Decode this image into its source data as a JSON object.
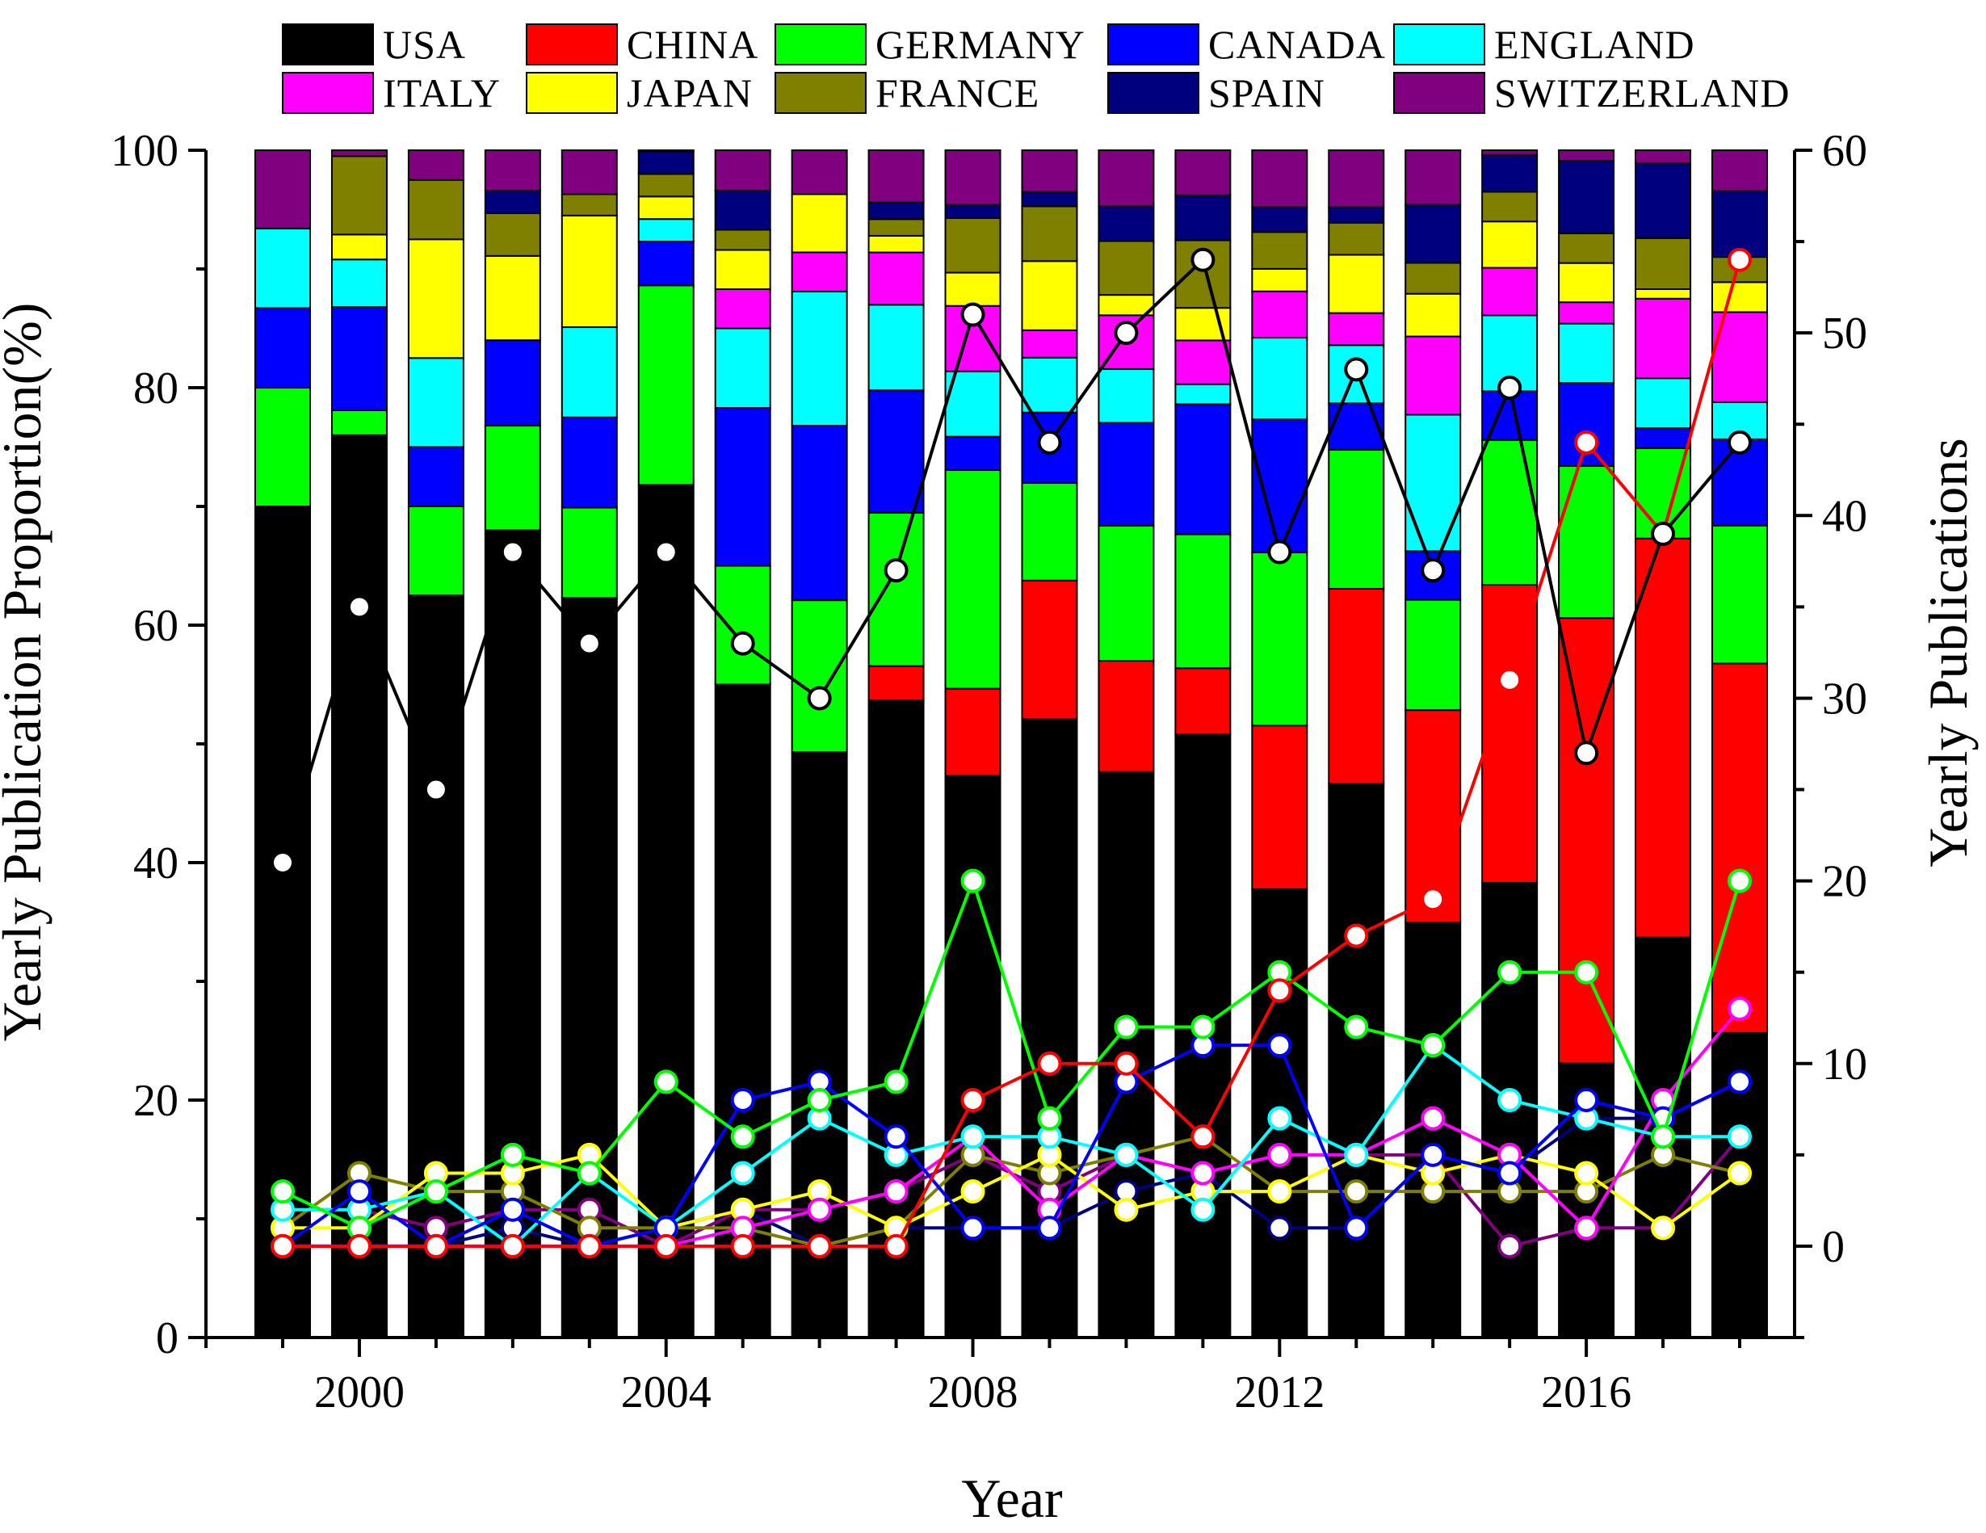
{
  "chart_data": {
    "type": "stacked-bar-with-lines",
    "xlabel": "Year",
    "ylabel_left": "Yearly Publication Proportion(%)",
    "ylabel_right": "Yearly Publications",
    "ylim_left": [
      0,
      100
    ],
    "ylim_right": [
      -5,
      60
    ],
    "left_ticks": [
      0,
      20,
      40,
      60,
      80,
      100
    ],
    "right_ticks": [
      0,
      10,
      20,
      30,
      40,
      50,
      60
    ],
    "x_ticks": [
      2000,
      2004,
      2008,
      2012,
      2016
    ],
    "years": [
      1999,
      2000,
      2001,
      2002,
      2003,
      2004,
      2005,
      2006,
      2007,
      2008,
      2009,
      2010,
      2011,
      2012,
      2013,
      2014,
      2015,
      2016,
      2017,
      2018
    ],
    "legend": {
      "placement": "top",
      "columns": 5
    },
    "series": [
      {
        "name": "USA",
        "color": "#000000",
        "proportions": [
          70,
          76,
          62.5,
          68,
          62.3,
          71.9,
          55,
          49.3,
          53.6,
          47.3,
          51.9,
          47.3,
          48.2,
          37.8,
          46.6,
          35,
          38.3,
          23.1,
          33.7,
          25.4
        ],
        "counts": [
          21,
          35,
          25,
          38,
          33,
          38,
          33,
          30,
          37,
          51,
          44,
          50,
          54,
          38,
          48,
          37,
          47,
          27,
          39,
          44
        ]
      },
      {
        "name": "CHINA",
        "color": "#ff0000",
        "proportions": [
          0,
          0,
          0,
          0,
          0,
          0,
          0,
          0,
          2.9,
          7.3,
          11.6,
          9.3,
          5.3,
          13.8,
          16.4,
          17.9,
          25.1,
          37.5,
          33.6,
          30.8
        ],
        "counts": [
          0,
          0,
          0,
          0,
          0,
          0,
          0,
          0,
          0,
          8,
          10,
          10,
          6,
          14,
          17,
          19,
          31,
          44,
          39,
          54
        ]
      },
      {
        "name": "GERMANY",
        "color": "#00ff00",
        "proportions": [
          10,
          2.1,
          7.5,
          8.8,
          7.6,
          16.8,
          10,
          12.8,
          12.9,
          18.4,
          8.2,
          11.3,
          10.7,
          14.6,
          11.7,
          9.3,
          12.2,
          12.8,
          7.6,
          11.5
        ],
        "counts": [
          3,
          1,
          3,
          5,
          4,
          9,
          6,
          8,
          9,
          20,
          7,
          12,
          12,
          15,
          12,
          11,
          15,
          15,
          6,
          20
        ]
      },
      {
        "name": "CANADA",
        "color": "#0000ff",
        "proportions": [
          6.7,
          8.7,
          5,
          7.2,
          7.6,
          3.7,
          13.3,
          14.7,
          10.3,
          2.8,
          5.9,
          8.6,
          10.4,
          11.2,
          3.9,
          4.1,
          4.1,
          7,
          1.7,
          7.2
        ],
        "counts": [
          0,
          3,
          0,
          2,
          0,
          1,
          8,
          9,
          6,
          1,
          1,
          9,
          11,
          11,
          1,
          5,
          4,
          8,
          7,
          9
        ]
      },
      {
        "name": "ENGLAND",
        "color": "#00ffff",
        "proportions": [
          6.7,
          4,
          7.5,
          0,
          7.6,
          1.9,
          6.7,
          11.3,
          7.2,
          5.5,
          4.6,
          4.5,
          1.6,
          6.9,
          4.9,
          11.5,
          6.4,
          5,
          4.2,
          3.1
        ],
        "counts": [
          2,
          2,
          3,
          0,
          4,
          1,
          4,
          7,
          5,
          6,
          6,
          5,
          2,
          7,
          5,
          11,
          8,
          7,
          6,
          6
        ]
      },
      {
        "name": "ITALY",
        "color": "#ff00ff",
        "proportions": [
          0,
          0,
          0,
          0,
          0,
          0,
          3.3,
          3.3,
          4.4,
          5.5,
          2.3,
          4.5,
          3.5,
          3.9,
          2.7,
          6.6,
          4,
          1.8,
          6.7,
          7.5
        ],
        "counts": [
          0,
          0,
          0,
          0,
          0,
          0,
          1,
          2,
          3,
          6,
          2,
          5,
          4,
          5,
          5,
          7,
          5,
          1,
          8,
          13
        ]
      },
      {
        "name": "JAPAN",
        "color": "#ffff00",
        "proportions": [
          0,
          2.1,
          10,
          7.1,
          9.4,
          1.9,
          3.3,
          4.9,
          1.4,
          2.8,
          5.8,
          1.7,
          2.6,
          1.9,
          4.9,
          3.6,
          3.9,
          3.3,
          0.8,
          2.5
        ],
        "counts": [
          1,
          1,
          4,
          4,
          5,
          1,
          2,
          3,
          1,
          3,
          5,
          2,
          3,
          3,
          5,
          4,
          5,
          4,
          1,
          4
        ]
      },
      {
        "name": "FRANCE",
        "color": "#808000",
        "proportions": [
          0,
          6.6,
          5,
          3.6,
          1.8,
          1.9,
          1.7,
          0,
          1.4,
          4.6,
          4.6,
          4.5,
          5.4,
          3.1,
          2.7,
          2.6,
          2.5,
          2.5,
          4.3,
          2.1
        ],
        "counts": [
          1,
          4,
          3,
          3,
          1,
          1,
          1,
          0,
          1,
          5,
          4,
          5,
          6,
          3,
          3,
          3,
          3,
          3,
          5,
          4
        ]
      },
      {
        "name": "SPAIN",
        "color": "#00007f",
        "proportions": [
          0,
          0,
          0,
          1.9,
          0,
          1.9,
          3.3,
          0,
          1.4,
          1.1,
          1.2,
          2.9,
          3.6,
          2.1,
          1.3,
          4.9,
          3.1,
          6.1,
          6.3,
          5.5
        ],
        "counts": [
          0,
          0,
          0,
          1,
          0,
          1,
          2,
          0,
          1,
          1,
          1,
          3,
          4,
          1,
          1,
          5,
          4,
          7,
          7,
          9
        ]
      },
      {
        "name": "SWITZERLAND",
        "color": "#800080",
        "proportions": [
          6.6,
          0.5,
          2.5,
          3.4,
          3.7,
          0.1,
          3.4,
          3.7,
          4.4,
          4.6,
          3.5,
          4.7,
          3.6,
          4.8,
          4.8,
          4.6,
          0.4,
          0.9,
          1.1,
          3.4
        ],
        "counts": [
          2,
          2,
          1,
          2,
          2,
          0,
          2,
          2,
          3,
          5,
          3,
          5,
          4,
          5,
          5,
          5,
          0,
          1,
          1,
          6
        ]
      }
    ]
  }
}
